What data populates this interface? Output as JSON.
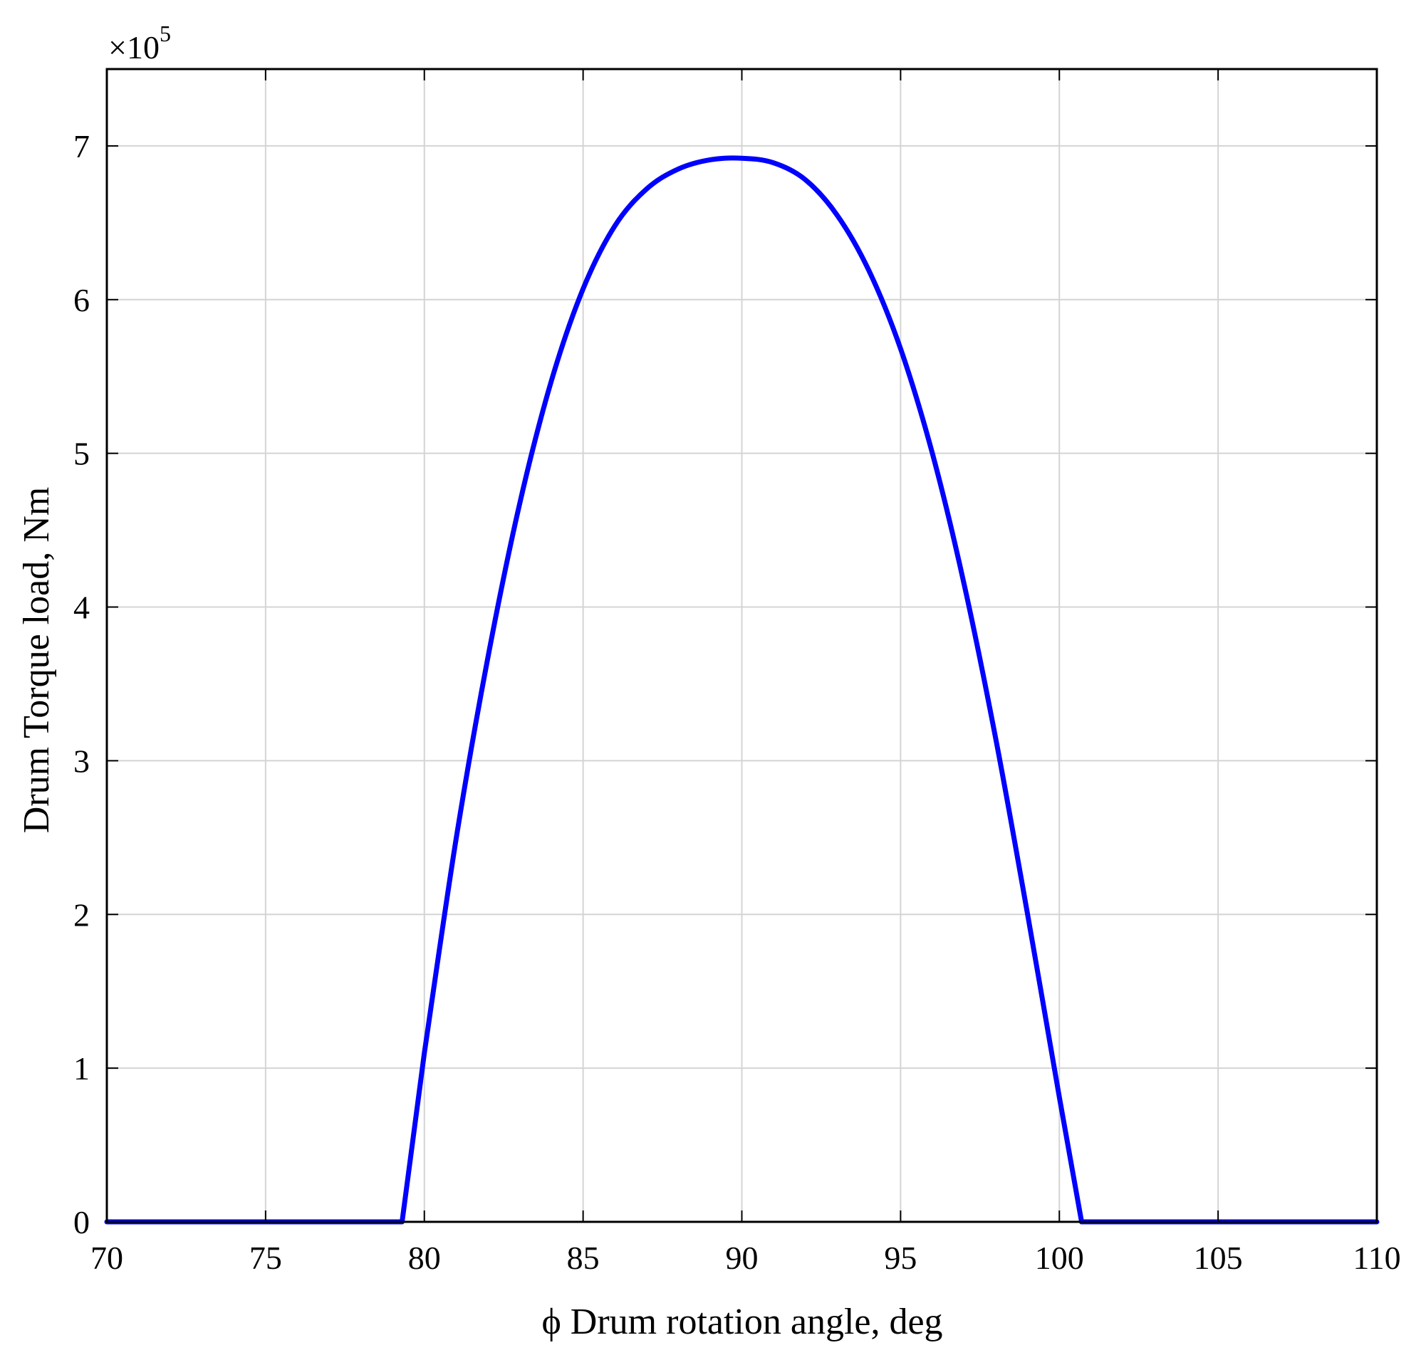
{
  "chart_data": {
    "type": "line",
    "title": "",
    "xlabel": "ϕ Drum rotation angle, deg",
    "ylabel": "Drum Torque load, Nm",
    "y_multiplier": {
      "base": "×10",
      "exponent": "5"
    },
    "xlim": [
      70,
      110
    ],
    "ylim": [
      0,
      7.5
    ],
    "xticks": [
      70,
      75,
      80,
      85,
      90,
      95,
      100,
      105,
      110
    ],
    "xtick_labels": [
      "70",
      "75",
      "80",
      "85",
      "90",
      "95",
      "100",
      "105",
      "110"
    ],
    "yticks": [
      0,
      1,
      2,
      3,
      4,
      5,
      6,
      7
    ],
    "ytick_labels": [
      "0",
      "1",
      "2",
      "3",
      "4",
      "5",
      "6",
      "7"
    ],
    "grid": true,
    "legend": "none",
    "series": [
      {
        "color": "#0000ff",
        "x": [
          70,
          75,
          79.3,
          80,
          81,
          82,
          83,
          84,
          85,
          86,
          87,
          88,
          89,
          90,
          91,
          92,
          93,
          94,
          95,
          96,
          97,
          98,
          99,
          100,
          100.7,
          105,
          110
        ],
        "y": [
          0,
          0,
          0,
          1.1,
          2.49,
          3.67,
          4.67,
          5.47,
          6.07,
          6.48,
          6.72,
          6.85,
          6.91,
          6.92,
          6.89,
          6.78,
          6.55,
          6.19,
          5.68,
          5.0,
          4.15,
          3.14,
          2.0,
          0.81,
          0,
          0,
          0
        ]
      }
    ]
  }
}
